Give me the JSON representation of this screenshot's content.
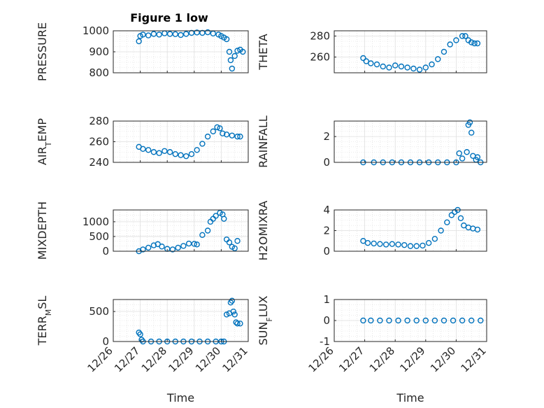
{
  "title": "Figure 1 low",
  "chart_data": [
    {
      "type": "scatter",
      "ylabel_main": "PRESSURE",
      "ylabel_sub": "",
      "ylim": [
        800,
        1000
      ],
      "yticks": [
        "800",
        "900",
        "1000"
      ],
      "xlim": [
        0,
        5
      ],
      "xlabel": "",
      "xticks": [
        "12/26",
        "12/27",
        "12/28",
        "12/29",
        "12/30",
        "12/31"
      ],
      "grid": true,
      "marker": "circle",
      "color": "#0072BD",
      "points": [
        [
          0.95,
          950
        ],
        [
          1.0,
          975
        ],
        [
          1.1,
          982
        ],
        [
          1.3,
          978
        ],
        [
          1.5,
          985
        ],
        [
          1.7,
          982
        ],
        [
          1.9,
          988
        ],
        [
          2.1,
          985
        ],
        [
          2.3,
          984
        ],
        [
          2.5,
          980
        ],
        [
          2.7,
          985
        ],
        [
          2.9,
          990
        ],
        [
          3.1,
          992
        ],
        [
          3.3,
          990
        ],
        [
          3.5,
          993
        ],
        [
          3.7,
          987
        ],
        [
          3.9,
          982
        ],
        [
          4.0,
          975
        ],
        [
          4.1,
          968
        ],
        [
          4.2,
          960
        ],
        [
          4.3,
          900
        ],
        [
          4.35,
          860
        ],
        [
          4.4,
          820
        ],
        [
          4.5,
          880
        ],
        [
          4.6,
          905
        ],
        [
          4.7,
          910
        ],
        [
          4.8,
          900
        ]
      ]
    },
    {
      "type": "scatter",
      "ylabel_main": "THETA",
      "ylabel_sub": "",
      "ylim": [
        245,
        285
      ],
      "yticks": [
        "260",
        "280"
      ],
      "xlim": [
        0,
        5
      ],
      "xlabel": "",
      "xticks": [
        "12/26",
        "12/27",
        "12/28",
        "12/29",
        "12/30",
        "12/31"
      ],
      "grid": true,
      "marker": "circle",
      "color": "#0072BD",
      "points": [
        [
          0.95,
          259
        ],
        [
          1.05,
          256
        ],
        [
          1.2,
          254
        ],
        [
          1.4,
          253
        ],
        [
          1.6,
          251
        ],
        [
          1.8,
          250
        ],
        [
          2.0,
          252
        ],
        [
          2.2,
          251
        ],
        [
          2.4,
          250
        ],
        [
          2.6,
          249
        ],
        [
          2.8,
          248
        ],
        [
          3.0,
          250
        ],
        [
          3.2,
          253
        ],
        [
          3.4,
          258
        ],
        [
          3.6,
          265
        ],
        [
          3.8,
          272
        ],
        [
          4.0,
          276
        ],
        [
          4.2,
          280
        ],
        [
          4.3,
          280
        ],
        [
          4.4,
          276
        ],
        [
          4.5,
          274
        ],
        [
          4.6,
          273
        ],
        [
          4.7,
          273
        ]
      ]
    },
    {
      "type": "scatter",
      "ylabel_main": "AIR",
      "ylabel_sub": "T",
      "ylabel_suffix": "EMP",
      "ylim": [
        240,
        280
      ],
      "yticks": [
        "240",
        "260",
        "280"
      ],
      "xlim": [
        0,
        5
      ],
      "xlabel": "",
      "xticks": [
        "12/26",
        "12/27",
        "12/28",
        "12/29",
        "12/30",
        "12/31"
      ],
      "grid": true,
      "marker": "circle",
      "color": "#0072BD",
      "points": [
        [
          0.95,
          255
        ],
        [
          1.1,
          253
        ],
        [
          1.3,
          252
        ],
        [
          1.5,
          250
        ],
        [
          1.7,
          249
        ],
        [
          1.9,
          251
        ],
        [
          2.1,
          250
        ],
        [
          2.3,
          248
        ],
        [
          2.5,
          247
        ],
        [
          2.7,
          246
        ],
        [
          2.9,
          248
        ],
        [
          3.1,
          252
        ],
        [
          3.3,
          258
        ],
        [
          3.5,
          265
        ],
        [
          3.7,
          270
        ],
        [
          3.85,
          274
        ],
        [
          3.95,
          273
        ],
        [
          4.05,
          268
        ],
        [
          4.2,
          267
        ],
        [
          4.4,
          266
        ],
        [
          4.6,
          265
        ],
        [
          4.7,
          265
        ]
      ]
    },
    {
      "type": "scatter",
      "ylabel_main": "RAINFALL",
      "ylabel_sub": "",
      "ylim": [
        0,
        3.2
      ],
      "yticks": [
        "0",
        "2"
      ],
      "xlim": [
        0,
        5
      ],
      "xlabel": "",
      "xticks": [
        "12/26",
        "12/27",
        "12/28",
        "12/29",
        "12/30",
        "12/31"
      ],
      "grid": true,
      "marker": "circle",
      "color": "#0072BD",
      "points": [
        [
          0.95,
          0
        ],
        [
          1.3,
          0
        ],
        [
          1.6,
          0
        ],
        [
          1.9,
          0
        ],
        [
          2.2,
          0
        ],
        [
          2.5,
          0
        ],
        [
          2.8,
          0
        ],
        [
          3.1,
          0
        ],
        [
          3.4,
          0
        ],
        [
          3.7,
          0
        ],
        [
          4.0,
          0
        ],
        [
          4.1,
          0.7
        ],
        [
          4.2,
          0.3
        ],
        [
          4.35,
          0.8
        ],
        [
          4.4,
          2.9
        ],
        [
          4.45,
          3.1
        ],
        [
          4.5,
          2.3
        ],
        [
          4.55,
          0.5
        ],
        [
          4.65,
          0.2
        ],
        [
          4.7,
          0.4
        ],
        [
          4.8,
          0
        ]
      ]
    },
    {
      "type": "scatter",
      "ylabel_main": "MIXDEPTH",
      "ylabel_sub": "",
      "ylim": [
        0,
        1400
      ],
      "yticks": [
        "0",
        "500",
        "1000"
      ],
      "xlim": [
        0,
        5
      ],
      "xlabel": "",
      "xticks": [
        "12/26",
        "12/27",
        "12/28",
        "12/29",
        "12/30",
        "12/31"
      ],
      "grid": true,
      "marker": "circle",
      "color": "#0072BD",
      "points": [
        [
          0.95,
          0
        ],
        [
          1.1,
          60
        ],
        [
          1.3,
          120
        ],
        [
          1.5,
          200
        ],
        [
          1.65,
          240
        ],
        [
          1.8,
          160
        ],
        [
          2.0,
          80
        ],
        [
          2.2,
          60
        ],
        [
          2.4,
          120
        ],
        [
          2.6,
          180
        ],
        [
          2.8,
          260
        ],
        [
          3.0,
          250
        ],
        [
          3.1,
          230
        ],
        [
          3.3,
          550
        ],
        [
          3.5,
          700
        ],
        [
          3.6,
          1000
        ],
        [
          3.7,
          1100
        ],
        [
          3.8,
          1200
        ],
        [
          3.95,
          1300
        ],
        [
          4.05,
          1250
        ],
        [
          4.1,
          1100
        ],
        [
          4.2,
          400
        ],
        [
          4.3,
          300
        ],
        [
          4.4,
          150
        ],
        [
          4.5,
          100
        ],
        [
          4.6,
          350
        ]
      ]
    },
    {
      "type": "scatter",
      "ylabel_main": "H2OMIXRA",
      "ylabel_sub": "",
      "ylim": [
        0,
        4
      ],
      "yticks": [
        "0",
        "2",
        "4"
      ],
      "xlim": [
        0,
        5
      ],
      "xlabel": "",
      "xticks": [
        "12/26",
        "12/27",
        "12/28",
        "12/29",
        "12/30",
        "12/31"
      ],
      "grid": true,
      "marker": "circle",
      "color": "#0072BD",
      "points": [
        [
          0.95,
          1.0
        ],
        [
          1.1,
          0.8
        ],
        [
          1.3,
          0.75
        ],
        [
          1.5,
          0.7
        ],
        [
          1.7,
          0.65
        ],
        [
          1.9,
          0.7
        ],
        [
          2.1,
          0.65
        ],
        [
          2.3,
          0.6
        ],
        [
          2.5,
          0.5
        ],
        [
          2.7,
          0.5
        ],
        [
          2.9,
          0.55
        ],
        [
          3.1,
          0.8
        ],
        [
          3.3,
          1.2
        ],
        [
          3.5,
          2.0
        ],
        [
          3.7,
          2.8
        ],
        [
          3.85,
          3.5
        ],
        [
          3.95,
          3.8
        ],
        [
          4.05,
          4.0
        ],
        [
          4.15,
          3.2
        ],
        [
          4.25,
          2.5
        ],
        [
          4.4,
          2.3
        ],
        [
          4.55,
          2.2
        ],
        [
          4.7,
          2.1
        ]
      ]
    },
    {
      "type": "scatter",
      "ylabel_main": "TERR",
      "ylabel_sub": "M",
      "ylabel_suffix": "SL",
      "ylim": [
        0,
        700
      ],
      "yticks": [
        "0",
        "500"
      ],
      "xlim": [
        0,
        5
      ],
      "xlabel": "Time",
      "xticks": [
        "12/26",
        "12/27",
        "12/28",
        "12/29",
        "12/30",
        "12/31"
      ],
      "grid": true,
      "marker": "circle",
      "color": "#0072BD",
      "points": [
        [
          0.95,
          150
        ],
        [
          1.0,
          120
        ],
        [
          1.05,
          30
        ],
        [
          1.1,
          0
        ],
        [
          1.4,
          0
        ],
        [
          1.7,
          0
        ],
        [
          2.0,
          0
        ],
        [
          2.3,
          0
        ],
        [
          2.6,
          0
        ],
        [
          2.9,
          0
        ],
        [
          3.2,
          0
        ],
        [
          3.5,
          0
        ],
        [
          3.8,
          0
        ],
        [
          4.0,
          0
        ],
        [
          4.1,
          0
        ],
        [
          4.2,
          450
        ],
        [
          4.3,
          470
        ],
        [
          4.35,
          650
        ],
        [
          4.4,
          680
        ],
        [
          4.45,
          500
        ],
        [
          4.5,
          450
        ],
        [
          4.55,
          320
        ],
        [
          4.6,
          300
        ],
        [
          4.7,
          300
        ]
      ]
    },
    {
      "type": "scatter",
      "ylabel_main": "SUN",
      "ylabel_sub": "F",
      "ylabel_suffix": "LUX",
      "ylim": [
        -1,
        1
      ],
      "yticks": [
        "-1",
        "0",
        "1"
      ],
      "xlim": [
        0,
        5
      ],
      "xlabel": "Time",
      "xticks": [
        "12/26",
        "12/27",
        "12/28",
        "12/29",
        "12/30",
        "12/31"
      ],
      "grid": true,
      "marker": "circle",
      "color": "#0072BD",
      "points": [
        [
          0.95,
          0
        ],
        [
          1.2,
          0
        ],
        [
          1.5,
          0
        ],
        [
          1.8,
          0
        ],
        [
          2.1,
          0
        ],
        [
          2.4,
          0
        ],
        [
          2.7,
          0
        ],
        [
          3.0,
          0
        ],
        [
          3.3,
          0
        ],
        [
          3.6,
          0
        ],
        [
          3.9,
          0
        ],
        [
          4.2,
          0
        ],
        [
          4.5,
          0
        ],
        [
          4.8,
          0
        ]
      ]
    }
  ]
}
